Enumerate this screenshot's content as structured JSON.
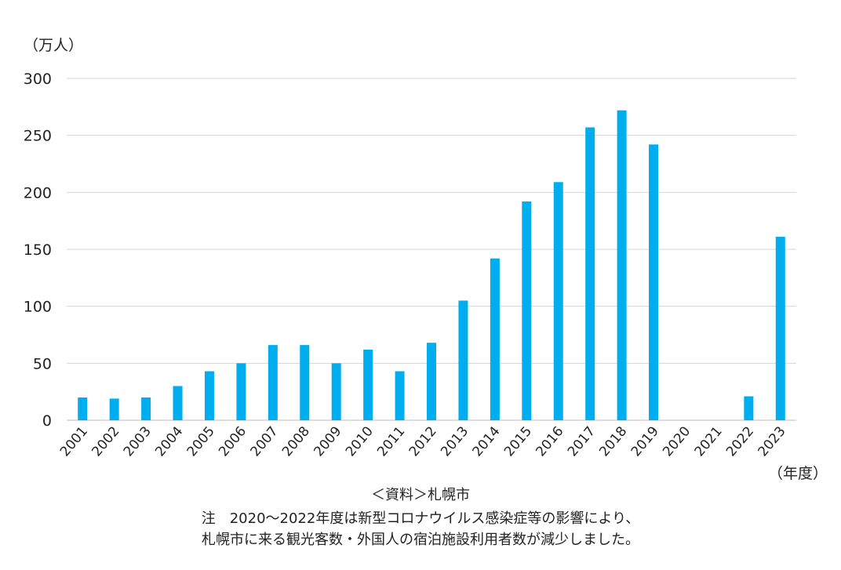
{
  "chart_data": {
    "type": "bar",
    "y_unit": "（万人）",
    "x_unit": "（年度）",
    "categories": [
      "2001",
      "2002",
      "2003",
      "2004",
      "2005",
      "2006",
      "2007",
      "2008",
      "2009",
      "2010",
      "2011",
      "2012",
      "2013",
      "2014",
      "2015",
      "2016",
      "2017",
      "2018",
      "2019",
      "2020",
      "2021",
      "2022",
      "2023"
    ],
    "values": [
      20,
      19,
      20,
      30,
      43,
      50,
      66,
      66,
      50,
      62,
      43,
      68,
      105,
      142,
      192,
      209,
      257,
      272,
      242,
      0,
      0,
      21,
      161
    ],
    "yticks": [
      0,
      50,
      100,
      150,
      200,
      250,
      300
    ],
    "ylim": [
      0,
      300
    ],
    "grid": true,
    "bar_color": "#00aeef"
  },
  "notes": {
    "source": "＜資料＞札幌市",
    "note_line1": "注　2020～2022年度は新型コロナウイルス感染症等の影響により、",
    "note_line2": "札幌市に来る観光客数・外国人の宿泊施設利用者数が減少しました。"
  }
}
